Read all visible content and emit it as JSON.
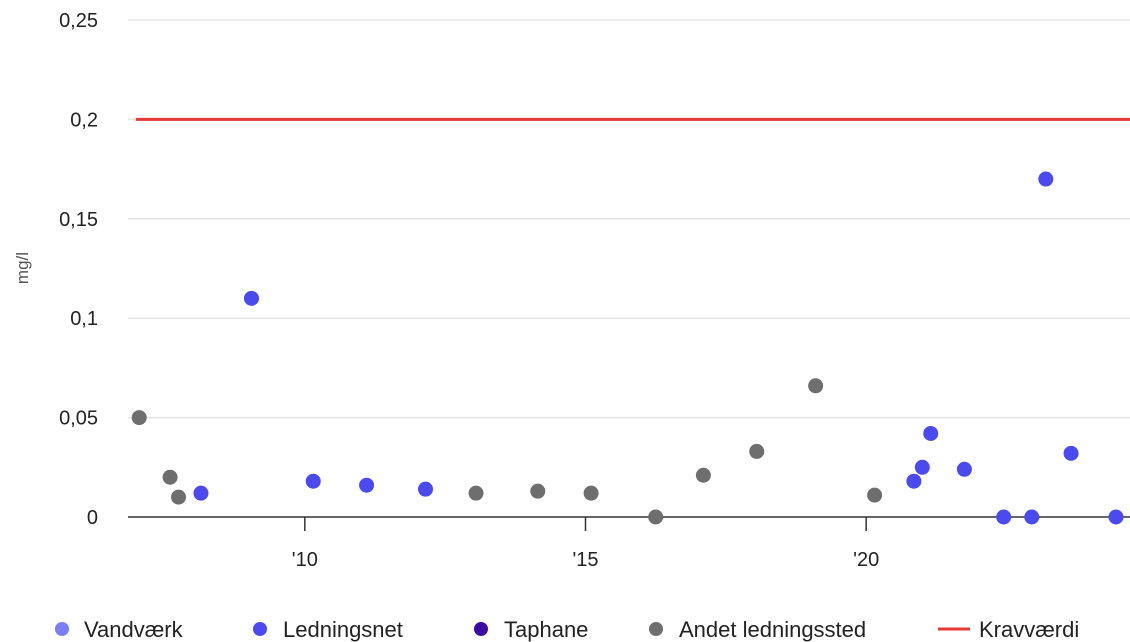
{
  "chart_data": {
    "type": "scatter",
    "ylabel": "mg/l",
    "xlabel": "",
    "xlim": [
      2006.85,
      2024.7
    ],
    "ylim": [
      0,
      0.25
    ],
    "y_ticks": [
      {
        "value": 0,
        "label": "0"
      },
      {
        "value": 0.05,
        "label": "0,05"
      },
      {
        "value": 0.1,
        "label": "0,1"
      },
      {
        "value": 0.15,
        "label": "0,15"
      },
      {
        "value": 0.2,
        "label": "0,2"
      },
      {
        "value": 0.25,
        "label": "0,25"
      }
    ],
    "x_ticks": [
      {
        "value": 2010,
        "label": "'10"
      },
      {
        "value": 2015,
        "label": "'15"
      },
      {
        "value": 2020,
        "label": "'20"
      }
    ],
    "grid": true,
    "legend_position": "bottom",
    "series": [
      {
        "name": "Vandværk",
        "color": "#7b7ef4",
        "points": []
      },
      {
        "name": "Ledningsnet",
        "color": "#4a4af0",
        "points": [
          {
            "x": 2008.15,
            "y": 0.012
          },
          {
            "x": 2009.05,
            "y": 0.11
          },
          {
            "x": 2010.15,
            "y": 0.018
          },
          {
            "x": 2011.1,
            "y": 0.016
          },
          {
            "x": 2012.15,
            "y": 0.014
          },
          {
            "x": 2020.85,
            "y": 0.018
          },
          {
            "x": 2021.0,
            "y": 0.025
          },
          {
            "x": 2021.15,
            "y": 0.042
          },
          {
            "x": 2021.75,
            "y": 0.024
          },
          {
            "x": 2022.45,
            "y": 0.0
          },
          {
            "x": 2022.95,
            "y": 0.0
          },
          {
            "x": 2023.2,
            "y": 0.17
          },
          {
            "x": 2023.65,
            "y": 0.032
          },
          {
            "x": 2024.45,
            "y": 0.0
          }
        ]
      },
      {
        "name": "Taphane",
        "color": "#3a0ca3",
        "points": []
      },
      {
        "name": "Andet ledningssted",
        "color": "#6e6e6e",
        "points": [
          {
            "x": 2007.05,
            "y": 0.05
          },
          {
            "x": 2007.6,
            "y": 0.02
          },
          {
            "x": 2007.75,
            "y": 0.01
          },
          {
            "x": 2013.05,
            "y": 0.012
          },
          {
            "x": 2014.15,
            "y": 0.013
          },
          {
            "x": 2015.1,
            "y": 0.012
          },
          {
            "x": 2016.25,
            "y": 0.0
          },
          {
            "x": 2017.1,
            "y": 0.021
          },
          {
            "x": 2018.05,
            "y": 0.033
          },
          {
            "x": 2019.1,
            "y": 0.066
          },
          {
            "x": 2020.15,
            "y": 0.011
          }
        ]
      }
    ],
    "reference_line": {
      "name": "Kravværdi",
      "value": 0.2,
      "color": "#e53935"
    },
    "colors": {
      "grid": "#e5e5e5",
      "axis": "#333333"
    }
  }
}
